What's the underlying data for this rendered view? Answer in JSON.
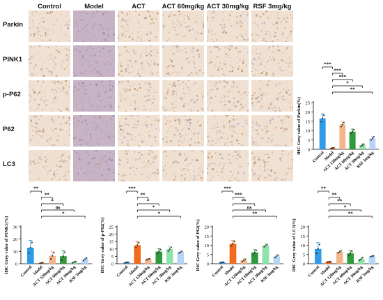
{
  "columns": [
    "Control",
    "Model",
    "ACT 120mg/kg",
    "ACT 60mg/kg",
    "ACT 30mg/kg",
    "RSF 3mg/kg"
  ],
  "rows": [
    "Parkin",
    "PINK1",
    "p-P62",
    "P62",
    "LC3"
  ],
  "colors": {
    "tissue_light": "#efe0d2",
    "tissue_dark": "#c7b3c6",
    "stain_brown": "#c08a5c",
    "bars": [
      "#2e9be8",
      "#f26a1b",
      "#f5b58a",
      "#2e9a3a",
      "#8ee3a8",
      "#b6d5f7"
    ]
  },
  "chart_data": [
    {
      "type": "bar",
      "ylabel": "IHC Grey value of Parkin(%)",
      "categories": [
        "Control",
        "Model",
        "ACT 120mg/kg",
        "ACT 60mg/kg",
        "ACT 30mg/kg",
        "RSF 3mg/kg"
      ],
      "values": [
        16.5,
        0.6,
        13.2,
        9.4,
        2.2,
        5.8
      ],
      "errors": [
        2.5,
        0.3,
        1.5,
        1.4,
        0.8,
        1.2
      ],
      "ylim": [
        0,
        25
      ],
      "yticks": [
        0,
        5,
        10,
        15,
        20,
        25
      ],
      "significance": [
        {
          "from": 0,
          "to": 1,
          "label": "***"
        },
        {
          "from": 1,
          "to": 2,
          "label": "***"
        },
        {
          "from": 1,
          "to": 3,
          "label": "***"
        },
        {
          "from": 1,
          "to": 4,
          "label": "*"
        },
        {
          "from": 1,
          "to": 5,
          "label": "**"
        }
      ]
    },
    {
      "type": "bar",
      "ylabel": "IHC Grey value of PINK1(%)",
      "categories": [
        "Control",
        "Model",
        "ACT 120mg/kg",
        "ACT 60mg/kg",
        "ACT 30mg/kg",
        "RSF 3mg/kg"
      ],
      "values": [
        13.0,
        0.6,
        6.4,
        6.1,
        1.2,
        3.6
      ],
      "errors": [
        6.0,
        0.3,
        3.6,
        4.6,
        0.8,
        1.4
      ],
      "ylim": [
        0,
        30
      ],
      "yticks": [
        0,
        10,
        20,
        30
      ],
      "significance": [
        {
          "from": 0,
          "to": 1,
          "label": "**"
        },
        {
          "from": 1,
          "to": 2,
          "label": "**"
        },
        {
          "from": 1,
          "to": 3,
          "label": "*"
        },
        {
          "from": 1,
          "to": 4,
          "label": "ns"
        },
        {
          "from": 1,
          "to": 5,
          "label": "*"
        }
      ]
    },
    {
      "type": "bar",
      "ylabel": "IHC Grey value of p-P62(%)",
      "categories": [
        "Control",
        "Model",
        "ACT 120mg/kg",
        "ACT 60mg/kg",
        "ACT 30mg/kg",
        "RSF 3mg/kg"
      ],
      "values": [
        0.8,
        12.5,
        3.0,
        8.2,
        9.8,
        7.8
      ],
      "errors": [
        0.4,
        2.4,
        0.6,
        1.9,
        1.8,
        0.8
      ],
      "ylim": [
        0,
        25
      ],
      "yticks": [
        0,
        5,
        10,
        15,
        20,
        25
      ],
      "significance": [
        {
          "from": 0,
          "to": 1,
          "label": "***"
        },
        {
          "from": 1,
          "to": 2,
          "label": "**"
        },
        {
          "from": 1,
          "to": 3,
          "label": "*"
        },
        {
          "from": 1,
          "to": 4,
          "label": "*"
        },
        {
          "from": 1,
          "to": 5,
          "label": "*"
        }
      ]
    },
    {
      "type": "bar",
      "ylabel": "IHC Grey value of P62(%)",
      "categories": [
        "Control",
        "Model",
        "ACT 120mg/kg",
        "ACT 60mg/kg",
        "ACT 30mg/kg",
        "RSF 3mg/kg"
      ],
      "values": [
        0.7,
        10.8,
        1.8,
        6.1,
        9.8,
        4.0
      ],
      "errors": [
        0.3,
        1.7,
        0.9,
        1.5,
        0.9,
        0.9
      ],
      "ylim": [
        0,
        20
      ],
      "yticks": [
        0,
        5,
        10,
        15,
        20
      ],
      "significance": [
        {
          "from": 0,
          "to": 1,
          "label": "***"
        },
        {
          "from": 1,
          "to": 2,
          "label": "***"
        },
        {
          "from": 1,
          "to": 3,
          "label": "**"
        },
        {
          "from": 1,
          "to": 4,
          "label": "ns"
        },
        {
          "from": 1,
          "to": 5,
          "label": "**"
        }
      ]
    },
    {
      "type": "bar",
      "ylabel": "IHC Grey value of LC3(%)",
      "categories": [
        "Control",
        "Model",
        "ACT 120mg/kg",
        "ACT 60mg/kg",
        "ACT 30mg/kg",
        "RSF 3mg/kg"
      ],
      "values": [
        8.0,
        1.0,
        6.4,
        5.6,
        2.6,
        4.0
      ],
      "errors": [
        3.4,
        0.3,
        0.8,
        1.6,
        1.0,
        0.4
      ],
      "ylim": [
        0,
        20
      ],
      "yticks": [
        0,
        5,
        10,
        15,
        20
      ],
      "significance": [
        {
          "from": 0,
          "to": 1,
          "label": "**"
        },
        {
          "from": 1,
          "to": 2,
          "label": "**"
        },
        {
          "from": 1,
          "to": 3,
          "label": "**"
        },
        {
          "from": 1,
          "to": 4,
          "label": "*"
        },
        {
          "from": 1,
          "to": 5,
          "label": "**"
        }
      ]
    }
  ]
}
